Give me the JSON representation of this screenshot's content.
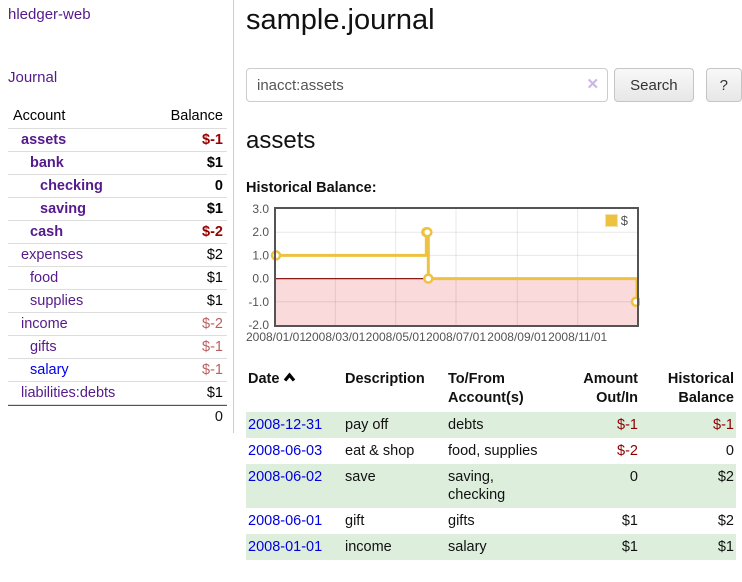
{
  "brand": {
    "label": "hledger-web"
  },
  "nav": {
    "journal_label": "Journal"
  },
  "sidebar": {
    "headers": {
      "account": "Account",
      "balance": "Balance"
    },
    "accounts": [
      {
        "name": "assets",
        "balance": "$-1",
        "indent": 1,
        "bold": true,
        "balance_class": "neg-strong"
      },
      {
        "name": "bank",
        "balance": "$1",
        "indent": 2,
        "bold": true,
        "balance_class": ""
      },
      {
        "name": "checking",
        "balance": "0",
        "indent": 3,
        "bold": true,
        "balance_class": ""
      },
      {
        "name": "saving",
        "balance": "$1",
        "indent": 3,
        "bold": true,
        "balance_class": ""
      },
      {
        "name": "cash",
        "balance": "$-2",
        "indent": 2,
        "bold": true,
        "balance_class": "neg-strong"
      },
      {
        "name": "expenses",
        "balance": "$2",
        "indent": 1,
        "bold": false,
        "balance_class": ""
      },
      {
        "name": "food",
        "balance": "$1",
        "indent": 2,
        "bold": false,
        "balance_class": ""
      },
      {
        "name": "supplies",
        "balance": "$1",
        "indent": 2,
        "bold": false,
        "balance_class": ""
      },
      {
        "name": "income",
        "balance": "$-2",
        "indent": 1,
        "bold": false,
        "balance_class": "neg-soft"
      },
      {
        "name": "gifts",
        "balance": "$-1",
        "indent": 2,
        "bold": false,
        "balance_class": "neg-soft"
      },
      {
        "name": "salary",
        "balance": "$-1",
        "indent": 2,
        "bold": false,
        "balance_class": "neg-soft",
        "link_color": "blue"
      },
      {
        "name": "liabilities:debts",
        "balance": "$1",
        "indent": 1,
        "bold": false,
        "balance_class": ""
      }
    ],
    "total": "0"
  },
  "main": {
    "title": "sample.journal"
  },
  "search": {
    "value": "inacct:assets",
    "clear_icon": "✕",
    "button_label": "Search",
    "help_label": "?"
  },
  "account": {
    "heading": "assets",
    "chart_title": "Historical Balance:"
  },
  "chart_data": {
    "type": "line",
    "step": true,
    "title": "Historical Balance",
    "legend": "$",
    "legend_position": "top-right",
    "grid": true,
    "ylim": [
      -2,
      3
    ],
    "y_ticks": [
      3.0,
      2.0,
      1.0,
      0.0,
      -1.0,
      -2.0
    ],
    "y_tick_labels": [
      "3.0",
      "2.0",
      "1.0",
      "0.0",
      "-1.0",
      "-2.0"
    ],
    "x_ticks": [
      "2008/01/01",
      "2008/03/01",
      "2008/05/01",
      "2008/07/01",
      "2008/09/01",
      "2008/11/01"
    ],
    "x_range": [
      "2008-01-01",
      "2008-12-31"
    ],
    "series": [
      {
        "name": "$",
        "color": "#EDC240",
        "points": [
          [
            "2008-01-01",
            1
          ],
          [
            "2008-06-01",
            2
          ],
          [
            "2008-06-02",
            2
          ],
          [
            "2008-06-03",
            0
          ],
          [
            "2008-12-31",
            -1
          ]
        ]
      }
    ],
    "negative_region_color": "#fadada",
    "zero_line_color": "#8b1a1a",
    "gridline_color": "rgba(0,0,0,0.09)",
    "border_color": "#545454"
  },
  "register": {
    "headers": {
      "date": "Date",
      "description": "Description",
      "accounts_line1": "To/From",
      "accounts_line2": "Account(s)",
      "amount_line1": "Amount",
      "amount_line2": "Out/In",
      "balance_line1": "Historical",
      "balance_line2": "Balance"
    },
    "rows": [
      {
        "date": "2008-12-31",
        "description": "pay off",
        "accounts": "debts",
        "amount": "$-1",
        "balance": "$-1",
        "amount_negative": true,
        "balance_negative": true
      },
      {
        "date": "2008-06-03",
        "description": "eat & shop",
        "accounts": "food, supplies",
        "amount": "$-2",
        "balance": "0",
        "amount_negative": true,
        "balance_negative": false
      },
      {
        "date": "2008-06-02",
        "description": "save",
        "accounts": "saving, checking",
        "amount": "0",
        "balance": "$2",
        "amount_negative": false,
        "balance_negative": false
      },
      {
        "date": "2008-06-01",
        "description": "gift",
        "accounts": "gifts",
        "amount": "$1",
        "balance": "$2",
        "amount_negative": false,
        "balance_negative": false
      },
      {
        "date": "2008-01-01",
        "description": "income",
        "accounts": "salary",
        "amount": "$1",
        "balance": "$1",
        "amount_negative": false,
        "balance_negative": false
      }
    ]
  }
}
